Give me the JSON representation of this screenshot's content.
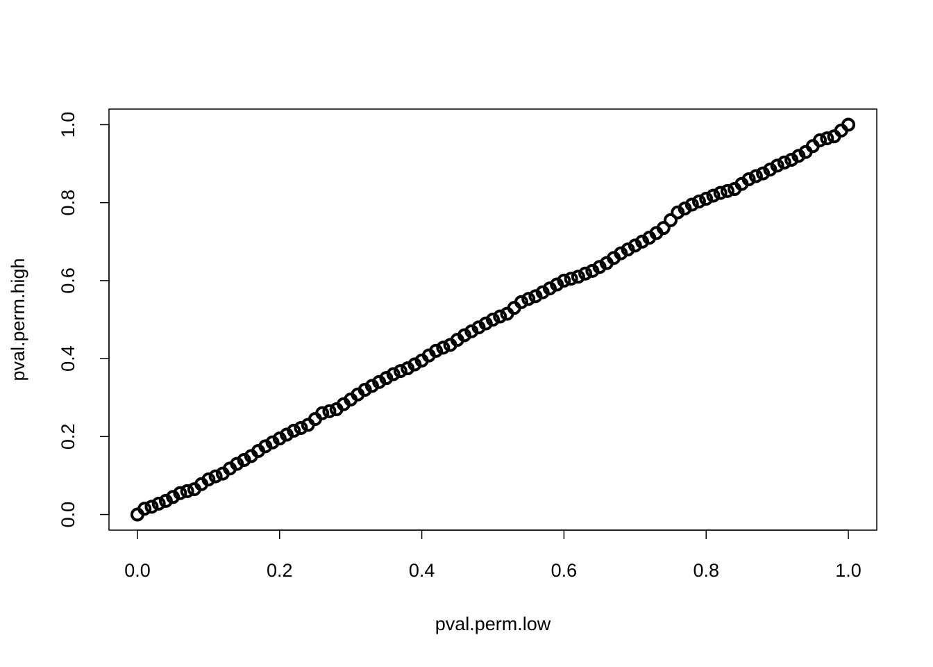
{
  "chart_data": {
    "type": "scatter",
    "xlabel": "pval.perm.low",
    "ylabel": "pval.perm.high",
    "color": "#000000",
    "xlim": [
      -0.04,
      1.04
    ],
    "ylim": [
      -0.04,
      1.04
    ],
    "xticks": [
      {
        "value": 0,
        "label": "0.0"
      },
      {
        "value": 0.2,
        "label": "0.2"
      },
      {
        "value": 0.4,
        "label": "0.4"
      },
      {
        "value": 0.6,
        "label": "0.6"
      },
      {
        "value": 0.8,
        "label": "0.8"
      },
      {
        "value": 1,
        "label": "1.0"
      }
    ],
    "yticks": [
      {
        "value": 0,
        "label": "0.0"
      },
      {
        "value": 0.2,
        "label": "0.2"
      },
      {
        "value": 0.4,
        "label": "0.4"
      },
      {
        "value": 0.6,
        "label": "0.6"
      },
      {
        "value": 0.8,
        "label": "0.8"
      },
      {
        "value": 1,
        "label": "1.0"
      }
    ],
    "x": [
      0,
      0.01,
      0.02,
      0.03,
      0.04,
      0.05,
      0.06,
      0.07,
      0.08,
      0.09,
      0.1,
      0.11,
      0.12,
      0.13,
      0.14,
      0.15,
      0.16,
      0.17,
      0.18,
      0.19,
      0.2,
      0.21,
      0.22,
      0.23,
      0.24,
      0.25,
      0.26,
      0.27,
      0.28,
      0.29,
      0.3,
      0.31,
      0.32,
      0.33,
      0.34,
      0.35,
      0.36,
      0.37,
      0.38,
      0.39,
      0.4,
      0.41,
      0.42,
      0.43,
      0.44,
      0.45,
      0.46,
      0.47,
      0.48,
      0.49,
      0.5,
      0.51,
      0.52,
      0.53,
      0.54,
      0.55,
      0.56,
      0.57,
      0.58,
      0.59,
      0.6,
      0.61,
      0.62,
      0.63,
      0.64,
      0.65,
      0.66,
      0.67,
      0.68,
      0.69,
      0.7,
      0.71,
      0.72,
      0.73,
      0.74,
      0.75,
      0.76,
      0.77,
      0.78,
      0.79,
      0.8,
      0.81,
      0.82,
      0.83,
      0.84,
      0.85,
      0.86,
      0.87,
      0.88,
      0.89,
      0.9,
      0.91,
      0.92,
      0.93,
      0.94,
      0.95,
      0.96,
      0.97,
      0.98,
      0.99,
      1
    ],
    "values": [
      0,
      0.015,
      0.02,
      0.028,
      0.035,
      0.045,
      0.055,
      0.06,
      0.065,
      0.078,
      0.09,
      0.098,
      0.105,
      0.118,
      0.13,
      0.14,
      0.15,
      0.163,
      0.175,
      0.185,
      0.195,
      0.205,
      0.215,
      0.222,
      0.23,
      0.245,
      0.26,
      0.265,
      0.27,
      0.283,
      0.295,
      0.308,
      0.32,
      0.33,
      0.34,
      0.35,
      0.36,
      0.368,
      0.375,
      0.385,
      0.395,
      0.408,
      0.42,
      0.428,
      0.435,
      0.448,
      0.46,
      0.47,
      0.48,
      0.49,
      0.5,
      0.508,
      0.515,
      0.53,
      0.545,
      0.553,
      0.56,
      0.57,
      0.58,
      0.59,
      0.6,
      0.605,
      0.61,
      0.618,
      0.625,
      0.635,
      0.645,
      0.658,
      0.67,
      0.68,
      0.69,
      0.7,
      0.71,
      0.722,
      0.735,
      0.755,
      0.775,
      0.785,
      0.795,
      0.803,
      0.81,
      0.818,
      0.825,
      0.83,
      0.835,
      0.848,
      0.86,
      0.868,
      0.875,
      0.885,
      0.895,
      0.903,
      0.91,
      0.92,
      0.93,
      0.945,
      0.96,
      0.965,
      0.97,
      0.985,
      1
    ]
  }
}
